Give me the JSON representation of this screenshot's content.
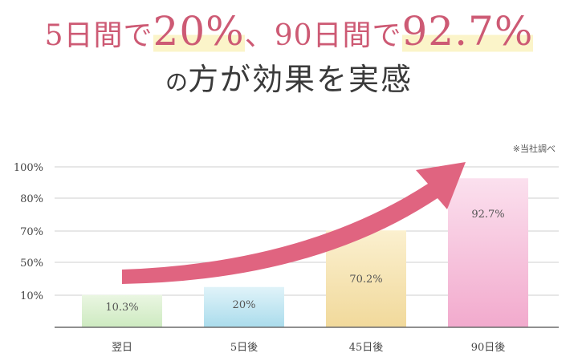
{
  "headline": {
    "part1": "5日間で",
    "value1": "20%",
    "part2": "、90日間で",
    "value2": "92.7%",
    "line2_small": "の",
    "line2_main": "方が効果を実感"
  },
  "note": "※当社調べ",
  "colors": {
    "accent": "#cd5a74",
    "arrow": "#e06480",
    "highlight": "#fbf4c9",
    "grid": "#cfcfcf",
    "axis": "#6b6b6b"
  },
  "chart_data": {
    "type": "bar",
    "categories": [
      "翌日",
      "5日後",
      "45日後",
      "90日後"
    ],
    "values": [
      10.3,
      20,
      70.2,
      92.7
    ],
    "value_labels": [
      "10.3%",
      "20%",
      "70.2%",
      "92.7%"
    ],
    "bar_colors": [
      [
        "#eaf6e2",
        "#cdeac0"
      ],
      [
        "#e0f3f9",
        "#aadcec"
      ],
      [
        "#fbf0cf",
        "#f1d99b"
      ],
      [
        "#fbe0ee",
        "#f2aacd"
      ]
    ],
    "y_ticks": [
      {
        "value": 10,
        "label": "10%"
      },
      {
        "value": 50,
        "label": "50%"
      },
      {
        "value": 70,
        "label": "70%"
      },
      {
        "value": 80,
        "label": "80%"
      },
      {
        "value": 100,
        "label": "100%"
      }
    ],
    "ylim": [
      0,
      100
    ],
    "grid": true,
    "legend": "none",
    "title": "",
    "xlabel": "",
    "ylabel": ""
  }
}
